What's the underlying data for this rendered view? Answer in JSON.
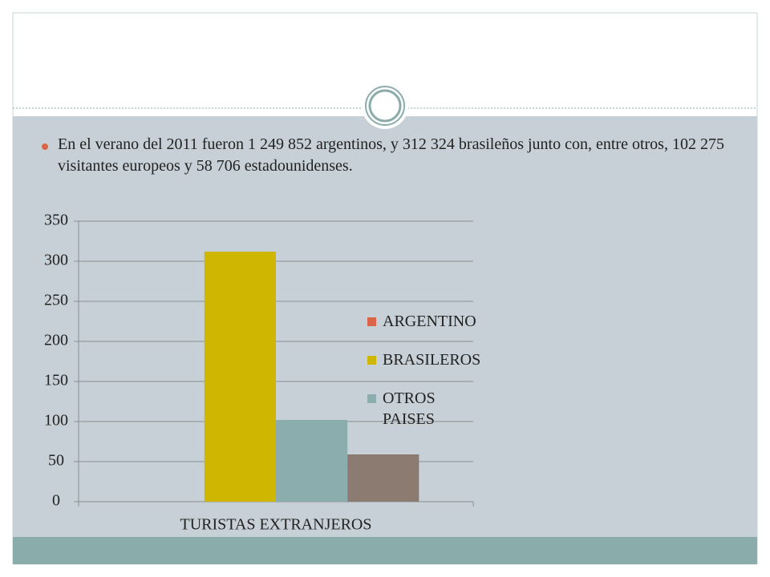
{
  "bullets": [
    "En el verano del 2011 fueron 1 249 852 argentinos, y 312 324 brasileños junto con, entre otros, 102 275 visitantes europeos y 58 706 estadounidenses."
  ],
  "chart_data": {
    "type": "bar",
    "categories": [
      "TURISTAS EXTRANJEROS"
    ],
    "series": [
      {
        "name": "ARGENTINO",
        "color": "#d9654b",
        "values": [
          null
        ]
      },
      {
        "name": "BRASILEROS",
        "color": "#cfb600",
        "values": [
          312
        ]
      },
      {
        "name": "OTROS PAISES",
        "color": "#8cadae",
        "values": [
          102
        ]
      },
      {
        "color": "#8c7b70",
        "values": [
          59
        ]
      }
    ],
    "ylim": [
      0,
      350
    ],
    "yticks": [
      0,
      50,
      100,
      150,
      200,
      250,
      300,
      350
    ],
    "grid": true
  }
}
